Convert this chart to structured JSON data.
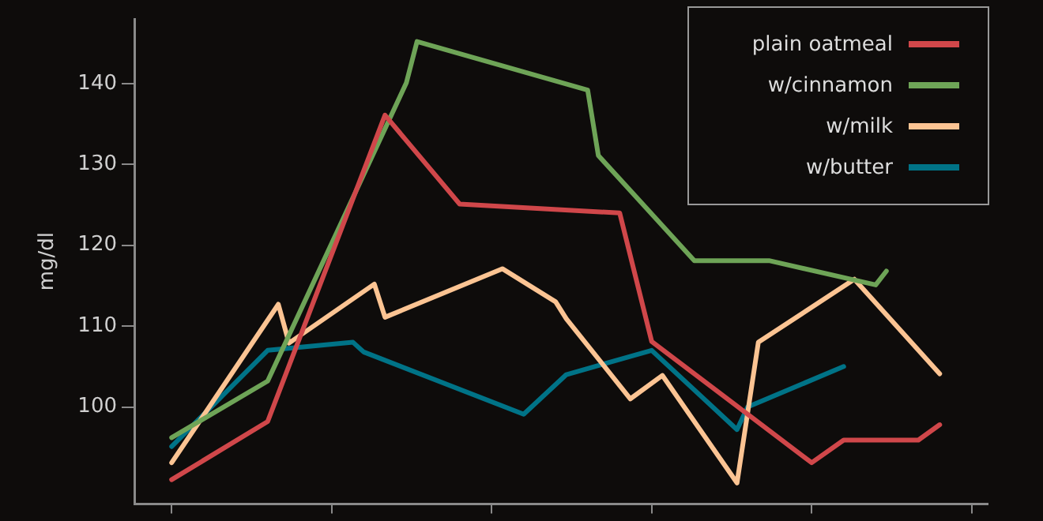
{
  "chart_data": {
    "type": "line",
    "ylabel": "mg/dl",
    "ylim": [
      88,
      148
    ],
    "categories": [
      null,
      null,
      null,
      null,
      null,
      null,
      null,
      null,
      null,
      null,
      null,
      null,
      null,
      null,
      null,
      null,
      null,
      null,
      null,
      null,
      null,
      null,
      null,
      null,
      null,
      null,
      null,
      null,
      null,
      null,
      null,
      null,
      null,
      null,
      null,
      null,
      null,
      null,
      null,
      null,
      null,
      null,
      null,
      null,
      null,
      null,
      null,
      null,
      null,
      null,
      null,
      null,
      null,
      null,
      null,
      null,
      null,
      null,
      null,
      null,
      null,
      null,
      null,
      null,
      null,
      null,
      null,
      null,
      null,
      null,
      null,
      null,
      null,
      null,
      null,
      null,
      null,
      null,
      null,
      null
    ],
    "yticks": [
      100,
      110,
      120,
      130,
      140
    ],
    "grid": false,
    "legend": "top right",
    "tick_labels": "y",
    "marker": "none",
    "line_style": "solid",
    "series": [
      {
        "name": "plain oatmeal",
        "color": "#d0474a",
        "values": [
          null,
          null,
          null,
          91.0,
          null,
          null,
          null,
          null,
          null,
          null,
          null,
          null,
          98.2,
          null,
          null,
          null,
          null,
          null,
          null,
          null,
          null,
          null,
          null,
          136.1,
          null,
          null,
          null,
          null,
          null,
          null,
          125.1,
          null,
          null,
          null,
          null,
          null,
          null,
          null,
          null,
          null,
          null,
          null,
          null,
          null,
          null,
          124.0,
          null,
          null,
          108.1,
          null,
          null,
          null,
          null,
          null,
          null,
          null,
          null,
          null,
          null,
          null,
          null,
          null,
          null,
          93.1,
          null,
          null,
          95.9,
          null,
          null,
          null,
          null,
          null,
          null,
          95.9,
          null,
          97.8,
          null,
          null,
          null,
          null
        ]
      },
      {
        "name": "w/cinnamon",
        "color": "#6ea457",
        "values": [
          null,
          null,
          null,
          96.2,
          null,
          null,
          null,
          null,
          null,
          null,
          null,
          null,
          103.2,
          null,
          null,
          null,
          null,
          null,
          null,
          null,
          null,
          null,
          null,
          null,
          null,
          140.1,
          145.2,
          null,
          null,
          null,
          null,
          null,
          null,
          null,
          null,
          null,
          null,
          null,
          null,
          null,
          null,
          null,
          139.2,
          131.1,
          null,
          null,
          null,
          null,
          null,
          null,
          null,
          null,
          118.1,
          null,
          null,
          null,
          null,
          null,
          null,
          118.1,
          null,
          null,
          null,
          null,
          null,
          null,
          null,
          null,
          null,
          115.1,
          116.8,
          null,
          null,
          null,
          null,
          null,
          null,
          null,
          null,
          null
        ]
      },
      {
        "name": "w/milk",
        "color": "#fcc493",
        "values": [
          null,
          null,
          null,
          93.1,
          null,
          null,
          null,
          null,
          null,
          null,
          null,
          null,
          null,
          112.7,
          107.9,
          null,
          null,
          null,
          null,
          null,
          null,
          null,
          115.2,
          111.1,
          null,
          null,
          null,
          null,
          null,
          null,
          null,
          null,
          null,
          null,
          117.1,
          null,
          null,
          null,
          null,
          113.0,
          110.9,
          null,
          null,
          null,
          null,
          null,
          101.0,
          null,
          null,
          103.9,
          null,
          null,
          null,
          null,
          null,
          null,
          90.6,
          null,
          108.0,
          null,
          null,
          null,
          null,
          null,
          null,
          null,
          null,
          115.8,
          null,
          null,
          null,
          null,
          null,
          null,
          null,
          104.1,
          null,
          null,
          null,
          null
        ]
      },
      {
        "name": "w/butter",
        "color": "#007387",
        "values": [
          null,
          null,
          null,
          95.1,
          null,
          null,
          null,
          null,
          null,
          null,
          null,
          null,
          107.0,
          null,
          null,
          null,
          null,
          null,
          null,
          null,
          108.0,
          106.8,
          null,
          null,
          null,
          null,
          null,
          null,
          null,
          null,
          null,
          null,
          null,
          null,
          null,
          null,
          99.1,
          null,
          null,
          null,
          104.0,
          null,
          null,
          null,
          null,
          null,
          null,
          null,
          107.0,
          null,
          null,
          null,
          null,
          null,
          null,
          null,
          97.2,
          100.0,
          null,
          null,
          null,
          null,
          null,
          null,
          null,
          null,
          105.0,
          null,
          null,
          null,
          null,
          null,
          null,
          null,
          null,
          null,
          null,
          null,
          null,
          null
        ]
      }
    ]
  }
}
